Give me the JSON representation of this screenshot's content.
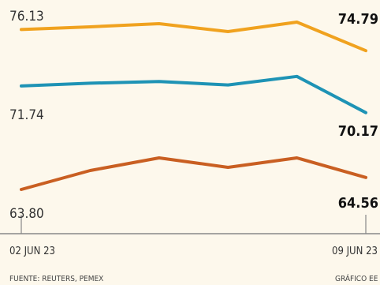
{
  "chart_data": {
    "type": "line",
    "x": [
      "02 JUN 23",
      "",
      "",
      "",
      "",
      "09 JUN 23"
    ],
    "series": [
      {
        "color": "#f0a21f",
        "values": [
          76.13,
          76.3,
          76.5,
          76.0,
          76.6,
          74.79
        ],
        "start_label": "76.13",
        "end_label": "74.79"
      },
      {
        "color": "#1e93b5",
        "values": [
          71.74,
          71.9,
          72.0,
          71.8,
          72.3,
          70.17
        ],
        "start_label": "71.74",
        "end_label": "70.17"
      },
      {
        "color": "#c95f22",
        "values": [
          63.8,
          65.0,
          65.8,
          65.2,
          65.8,
          64.56
        ],
        "start_label": "63.80",
        "end_label": "64.56"
      }
    ],
    "x_start_label": "02 JUN 23",
    "x_end_label": "09 JUN 23",
    "source": "FUENTE: REUTERS, PEMEX",
    "credit": "GRÁFICO EE"
  }
}
